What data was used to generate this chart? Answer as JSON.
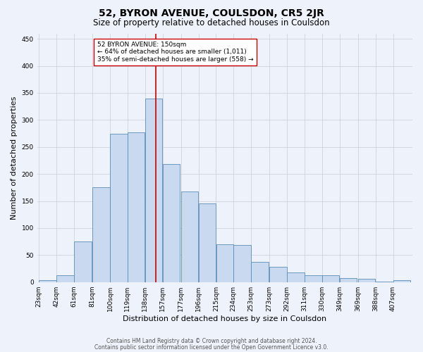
{
  "title": "52, BYRON AVENUE, COULSDON, CR5 2JR",
  "subtitle": "Size of property relative to detached houses in Coulsdon",
  "xlabel": "Distribution of detached houses by size in Coulsdon",
  "ylabel": "Number of detached properties",
  "bar_labels": [
    "23sqm",
    "42sqm",
    "61sqm",
    "81sqm",
    "100sqm",
    "119sqm",
    "138sqm",
    "157sqm",
    "177sqm",
    "196sqm",
    "215sqm",
    "234sqm",
    "253sqm",
    "273sqm",
    "292sqm",
    "311sqm",
    "330sqm",
    "349sqm",
    "369sqm",
    "388sqm",
    "407sqm"
  ],
  "bar_heights": [
    3,
    12,
    75,
    176,
    275,
    277,
    340,
    219,
    168,
    145,
    70,
    68,
    37,
    28,
    18,
    12,
    13,
    7,
    6,
    1,
    3
  ],
  "bar_color": "#c9d9f0",
  "bar_edge_color": "#5b8db8",
  "vline_x": 150,
  "vline_color": "#cc0000",
  "ylim": [
    0,
    460
  ],
  "yticks": [
    0,
    50,
    100,
    150,
    200,
    250,
    300,
    350,
    400,
    450
  ],
  "annotation_text": "52 BYRON AVENUE: 150sqm\n← 64% of detached houses are smaller (1,011)\n35% of semi-detached houses are larger (558) →",
  "annotation_box_color": "#ffffff",
  "annotation_box_edge": "#cc0000",
  "footnote1": "Contains HM Land Registry data © Crown copyright and database right 2024.",
  "footnote2": "Contains public sector information licensed under the Open Government Licence v3.0.",
  "bg_color": "#eef2fb",
  "grid_color": "#c8cdd8",
  "title_fontsize": 10,
  "subtitle_fontsize": 8.5,
  "label_fontsize": 8,
  "tick_fontsize": 6.5,
  "footnote_fontsize": 5.5
}
